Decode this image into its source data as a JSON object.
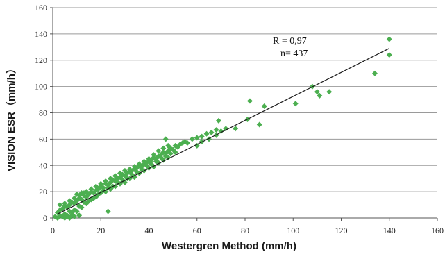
{
  "chart_data": {
    "type": "scatter",
    "xlabel": "Westergren Method (mm/h)",
    "ylabel": "VISION ESR（mm/h）",
    "xlim": [
      0,
      160
    ],
    "ylim": [
      0,
      160
    ],
    "xticks": [
      "0",
      "20",
      "40",
      "60",
      "80",
      "100",
      "120",
      "140",
      "160"
    ],
    "yticks": [
      "0",
      "20",
      "40",
      "60",
      "80",
      "100",
      "120",
      "140",
      "160"
    ],
    "grid": "horizontal",
    "point_color": "#4caf50",
    "annotations": [
      "R = 0,97",
      "n= 437"
    ],
    "regression_line": {
      "x": [
        2,
        140
      ],
      "y": [
        3,
        129
      ]
    },
    "points": [
      [
        1,
        1
      ],
      [
        2,
        0
      ],
      [
        3,
        2
      ],
      [
        4,
        1
      ],
      [
        5,
        3
      ],
      [
        6,
        2
      ],
      [
        7,
        5
      ],
      [
        8,
        4
      ],
      [
        2,
        4
      ],
      [
        3,
        6
      ],
      [
        4,
        7
      ],
      [
        5,
        9
      ],
      [
        6,
        8
      ],
      [
        7,
        10
      ],
      [
        8,
        12
      ],
      [
        9,
        11
      ],
      [
        10,
        13
      ],
      [
        11,
        15
      ],
      [
        12,
        14
      ],
      [
        13,
        17
      ],
      [
        14,
        16
      ],
      [
        15,
        18
      ],
      [
        16,
        20
      ],
      [
        17,
        19
      ],
      [
        18,
        21
      ],
      [
        19,
        22
      ],
      [
        20,
        24
      ],
      [
        21,
        23
      ],
      [
        22,
        26
      ],
      [
        23,
        25
      ],
      [
        24,
        27
      ],
      [
        25,
        29
      ],
      [
        26,
        28
      ],
      [
        27,
        30
      ],
      [
        28,
        31
      ],
      [
        29,
        33
      ],
      [
        30,
        32
      ],
      [
        31,
        34
      ],
      [
        32,
        35
      ],
      [
        33,
        36
      ],
      [
        34,
        37
      ],
      [
        35,
        38
      ],
      [
        36,
        40
      ],
      [
        37,
        39
      ],
      [
        38,
        41
      ],
      [
        39,
        42
      ],
      [
        40,
        43
      ],
      [
        41,
        44
      ],
      [
        42,
        46
      ],
      [
        43,
        45
      ],
      [
        44,
        47
      ],
      [
        45,
        48
      ],
      [
        46,
        50
      ],
      [
        47,
        49
      ],
      [
        48,
        51
      ],
      [
        49,
        53
      ],
      [
        50,
        52
      ],
      [
        51,
        55
      ],
      [
        52,
        54
      ],
      [
        53,
        56
      ],
      [
        54,
        57
      ],
      [
        55,
        58
      ],
      [
        56,
        57
      ],
      [
        58,
        60
      ],
      [
        60,
        61
      ],
      [
        62,
        62
      ],
      [
        64,
        64
      ],
      [
        66,
        65
      ],
      [
        68,
        67
      ],
      [
        70,
        66
      ],
      [
        6,
        1
      ],
      [
        8,
        2
      ],
      [
        10,
        5
      ],
      [
        12,
        8
      ],
      [
        14,
        11
      ],
      [
        16,
        14
      ],
      [
        18,
        16
      ],
      [
        20,
        19
      ],
      [
        22,
        20
      ],
      [
        24,
        22
      ],
      [
        26,
        24
      ],
      [
        28,
        26
      ],
      [
        30,
        27
      ],
      [
        32,
        30
      ],
      [
        34,
        31
      ],
      [
        36,
        34
      ],
      [
        38,
        36
      ],
      [
        40,
        38
      ],
      [
        42,
        39
      ],
      [
        44,
        42
      ],
      [
        46,
        44
      ],
      [
        48,
        46
      ],
      [
        9,
        6
      ],
      [
        11,
        9
      ],
      [
        13,
        12
      ],
      [
        15,
        13
      ],
      [
        17,
        15
      ],
      [
        19,
        18
      ],
      [
        21,
        21
      ],
      [
        23,
        23
      ],
      [
        25,
        24
      ],
      [
        27,
        27
      ],
      [
        29,
        29
      ],
      [
        31,
        30
      ],
      [
        33,
        33
      ],
      [
        35,
        35
      ],
      [
        37,
        37
      ],
      [
        39,
        40
      ],
      [
        41,
        41
      ],
      [
        43,
        43
      ],
      [
        45,
        46
      ],
      [
        47,
        47
      ],
      [
        49,
        49
      ],
      [
        51,
        50
      ],
      [
        10,
        18
      ],
      [
        12,
        19
      ],
      [
        14,
        20
      ],
      [
        16,
        22
      ],
      [
        18,
        24
      ],
      [
        20,
        26
      ],
      [
        22,
        28
      ],
      [
        24,
        30
      ],
      [
        26,
        32
      ],
      [
        28,
        34
      ],
      [
        30,
        36
      ],
      [
        32,
        37
      ],
      [
        34,
        39
      ],
      [
        36,
        41
      ],
      [
        38,
        43
      ],
      [
        40,
        45
      ],
      [
        42,
        48
      ],
      [
        44,
        51
      ],
      [
        46,
        53
      ],
      [
        48,
        55
      ],
      [
        3,
        10
      ],
      [
        5,
        11
      ],
      [
        7,
        13
      ],
      [
        9,
        15
      ],
      [
        11,
        17
      ],
      [
        13,
        19
      ],
      [
        47,
        60
      ],
      [
        23,
        5
      ],
      [
        5,
        0
      ],
      [
        7,
        0
      ],
      [
        9,
        1
      ],
      [
        11,
        2
      ],
      [
        60,
        55
      ],
      [
        62,
        58
      ],
      [
        65,
        60
      ],
      [
        68,
        63
      ],
      [
        69,
        74
      ],
      [
        72,
        68
      ],
      [
        76,
        68
      ],
      [
        81,
        75
      ],
      [
        82,
        89
      ],
      [
        86,
        71
      ],
      [
        88,
        85
      ],
      [
        101,
        87
      ],
      [
        108,
        100
      ],
      [
        110,
        96
      ],
      [
        111,
        93
      ],
      [
        115,
        96
      ],
      [
        134,
        110
      ],
      [
        140,
        136
      ],
      [
        140,
        124
      ]
    ]
  }
}
